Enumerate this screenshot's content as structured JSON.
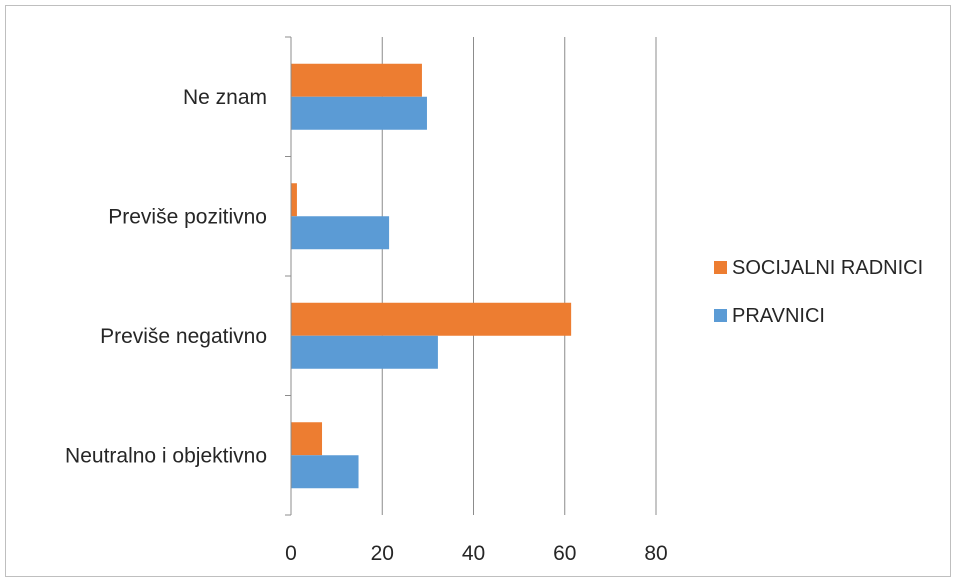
{
  "chart_data": {
    "type": "bar",
    "orientation": "horizontal",
    "categories": [
      "Ne znam",
      "Previše pozitivno",
      "Previše negativno",
      "Neutralno i objektivno"
    ],
    "series": [
      {
        "name": "SOCIJALNI RADNICI",
        "color": "#ed7d31",
        "values": [
          28.7,
          1.3,
          61.4,
          6.8
        ]
      },
      {
        "name": "PRAVNICI",
        "color": "#5b9bd5",
        "values": [
          29.8,
          21.5,
          32.2,
          14.8
        ]
      }
    ],
    "xlim": [
      0,
      80
    ],
    "x_ticks": [
      "0",
      "20",
      "40",
      "60",
      "80"
    ],
    "grid": true,
    "legend_position": "right",
    "title": "",
    "xlabel": "",
    "ylabel": ""
  }
}
